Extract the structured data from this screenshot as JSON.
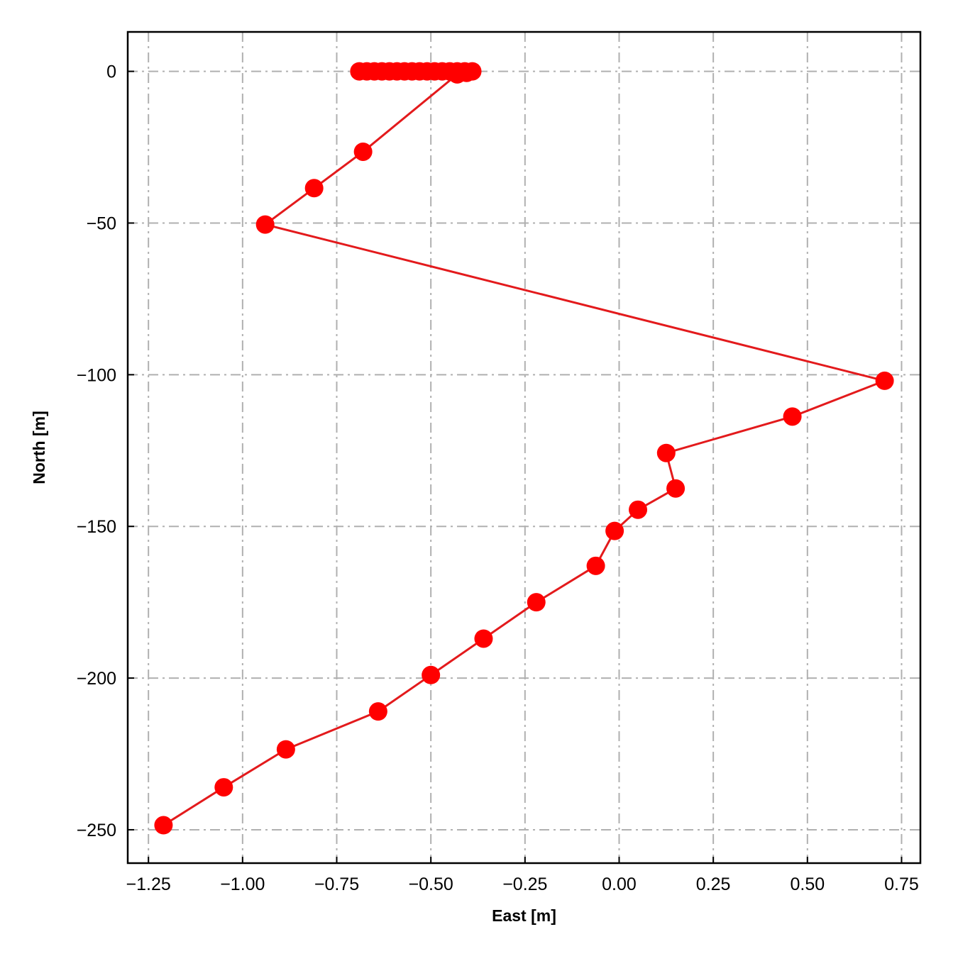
{
  "chart_data": {
    "type": "line",
    "title": "",
    "xlabel": "East [m]",
    "ylabel": "North [m]",
    "xlim": [
      -1.305,
      0.8
    ],
    "ylim": [
      -261,
      13
    ],
    "grid": true,
    "legend": "none",
    "color": "#ff0000",
    "line_color": "#e31a1c",
    "grid_color": "#b0b0b0",
    "xticks": [
      -1.25,
      -1.0,
      -0.75,
      -0.5,
      -0.25,
      0.0,
      0.25,
      0.5,
      0.75
    ],
    "xtick_labels": [
      "−1.25",
      "−1.00",
      "−0.75",
      "−0.50",
      "−0.25",
      "0.00",
      "0.25",
      "0.50",
      "0.75"
    ],
    "yticks": [
      0,
      -50,
      -100,
      -150,
      -200,
      -250
    ],
    "ytick_labels": [
      "0",
      "−50",
      "−100",
      "−150",
      "−200",
      "−250"
    ],
    "series": [
      {
        "x": [
          -0.69,
          -0.67,
          -0.65,
          -0.63,
          -0.61,
          -0.59,
          -0.57,
          -0.55,
          -0.53,
          -0.51,
          -0.49,
          -0.47,
          -0.45,
          -0.43,
          -0.41,
          -0.39,
          -0.405,
          -0.43,
          -0.68,
          -0.81,
          -0.94,
          0.705,
          0.46,
          0.125,
          0.15,
          0.05,
          -0.012,
          -0.062,
          -0.22,
          -0.36,
          -0.5,
          -0.64,
          -0.885,
          -1.05,
          -1.21
        ],
        "y": [
          0,
          0,
          0,
          0,
          0,
          0,
          0,
          0,
          0,
          0,
          0,
          0,
          0,
          0,
          0,
          0,
          -0.5,
          -1,
          -26.5,
          -38.5,
          -50.5,
          -102,
          -113.8,
          -125.8,
          -137.5,
          -144.5,
          -151.5,
          -163,
          -175,
          -187,
          -199,
          -211,
          -223.5,
          -236,
          -248.5
        ]
      }
    ]
  }
}
